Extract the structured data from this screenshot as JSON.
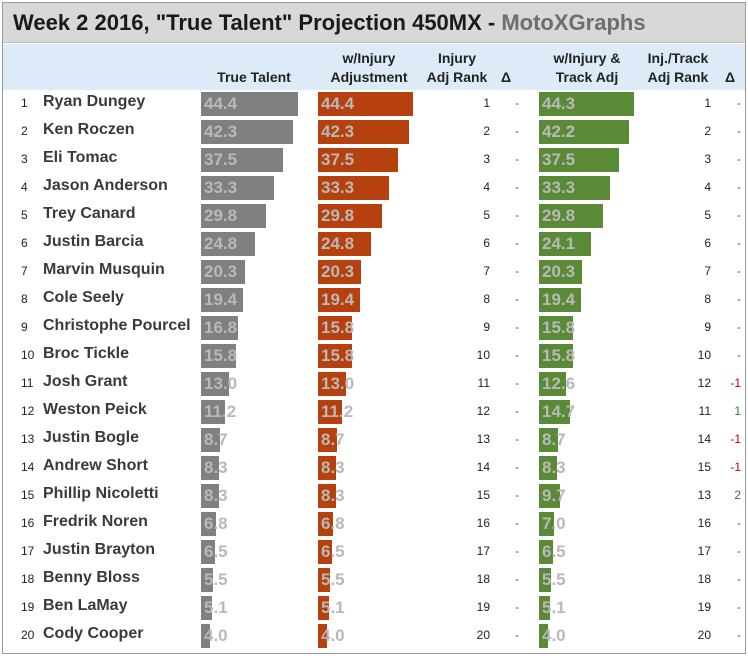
{
  "title": {
    "main": "Week 2 2016, \"True Talent\" Projection 450MX - ",
    "brand": "MotoXGraphs"
  },
  "headers": {
    "true_talent": "True Talent",
    "injury_adj_1": "w/Injury",
    "injury_adj_2": "Adjustment",
    "injury_rank_1": "Injury",
    "injury_rank_2": "Adj Rank",
    "delta_1": "Δ",
    "track_adj_1": "w/Injury &",
    "track_adj_2": "Track Adj",
    "track_rank_1": "Inj./Track",
    "track_rank_2": "Adj Rank",
    "delta_2": "Δ"
  },
  "colors": {
    "true_talent": "#808080",
    "injury_adjusted": "#b7410e",
    "track_adjusted": "#5b8a36",
    "delta_negative": "#cc0000",
    "delta_positive": "#2e7d32",
    "delta_zero": "#555555"
  },
  "chart_data": {
    "type": "bar",
    "categories": [
      "Ryan Dungey",
      "Ken Roczen",
      "Eli Tomac",
      "Jason Anderson",
      "Trey Canard",
      "Justin Barcia",
      "Marvin Musquin",
      "Cole Seely",
      "Christophe Pourcel",
      "Broc Tickle",
      "Josh Grant",
      "Weston Peick",
      "Justin Bogle",
      "Andrew Short",
      "Phillip Nicoletti",
      "Fredrik Noren",
      "Justin Brayton",
      "Benny Bloss",
      "Ben LaMay",
      "Cody Cooper"
    ],
    "row_numbers": [
      "1",
      "2",
      "3",
      "4",
      "5",
      "6",
      "7",
      "8",
      "9",
      "10",
      "11",
      "12",
      "13",
      "14",
      "15",
      "16",
      "17",
      "18",
      "19",
      "20"
    ],
    "series": [
      {
        "name": "True Talent",
        "values": [
          44.4,
          42.3,
          37.5,
          33.3,
          29.8,
          24.8,
          20.3,
          19.4,
          16.8,
          15.8,
          13.0,
          11.2,
          8.7,
          8.3,
          8.3,
          6.8,
          6.5,
          5.5,
          5.1,
          4.0
        ]
      },
      {
        "name": "w/Injury Adjustment",
        "values": [
          44.4,
          42.3,
          37.5,
          33.3,
          29.8,
          24.8,
          20.3,
          19.4,
          15.8,
          15.8,
          13.0,
          11.2,
          8.7,
          8.3,
          8.3,
          6.8,
          6.5,
          5.5,
          5.1,
          4.0
        ]
      },
      {
        "name": "w/Injury & Track Adj",
        "values": [
          44.3,
          42.2,
          37.5,
          33.3,
          29.8,
          24.1,
          20.3,
          19.4,
          15.8,
          15.8,
          12.6,
          14.7,
          8.7,
          8.3,
          9.7,
          7.0,
          6.5,
          5.5,
          5.1,
          4.0
        ]
      }
    ],
    "labels": {
      "true_talent": [
        "44.4",
        "42.3",
        "37.5",
        "33.3",
        "29.8",
        "24.8",
        "20.3",
        "19.4",
        "16.8",
        "15.8",
        "13.0",
        "11.2",
        "8.7",
        "8.3",
        "8.3",
        "6.8",
        "6.5",
        "5.5",
        "5.1",
        "4.0"
      ],
      "injury_adj": [
        "44.4",
        "42.3",
        "37.5",
        "33.3",
        "29.8",
        "24.8",
        "20.3",
        "19.4",
        "15.8",
        "15.8",
        "13.0",
        "11.2",
        "8.7",
        "8.3",
        "8.3",
        "6.8",
        "6.5",
        "5.5",
        "5.1",
        "4.0"
      ],
      "track_adj": [
        "44.3",
        "42.2",
        "37.5",
        "33.3",
        "29.8",
        "24.1",
        "20.3",
        "19.4",
        "15.8",
        "15.8",
        "12.6",
        "14.7",
        "8.7",
        "8.3",
        "9.7",
        "7.0",
        "6.5",
        "5.5",
        "5.1",
        "4.0"
      ]
    },
    "injury_adj_rank": [
      "1",
      "2",
      "3",
      "4",
      "5",
      "6",
      "7",
      "8",
      "9",
      "10",
      "11",
      "12",
      "13",
      "14",
      "15",
      "16",
      "17",
      "18",
      "19",
      "20"
    ],
    "injury_delta": [
      "-",
      "-",
      "-",
      "-",
      "-",
      "-",
      "-",
      "-",
      "-",
      "-",
      "-",
      "-",
      "-",
      "-",
      "-",
      "-",
      "-",
      "-",
      "-",
      "-"
    ],
    "track_adj_rank": [
      "1",
      "2",
      "3",
      "4",
      "5",
      "6",
      "7",
      "8",
      "9",
      "10",
      "12",
      "11",
      "14",
      "15",
      "13",
      "16",
      "17",
      "18",
      "19",
      "20"
    ],
    "track_delta": [
      "-",
      "-",
      "-",
      "-",
      "-",
      "-",
      "-",
      "-",
      "-",
      "-",
      "-1",
      "1",
      "-1",
      "-1",
      "2",
      "-",
      "-",
      "-",
      "-",
      "-"
    ],
    "xlim": [
      0,
      44.4
    ]
  }
}
